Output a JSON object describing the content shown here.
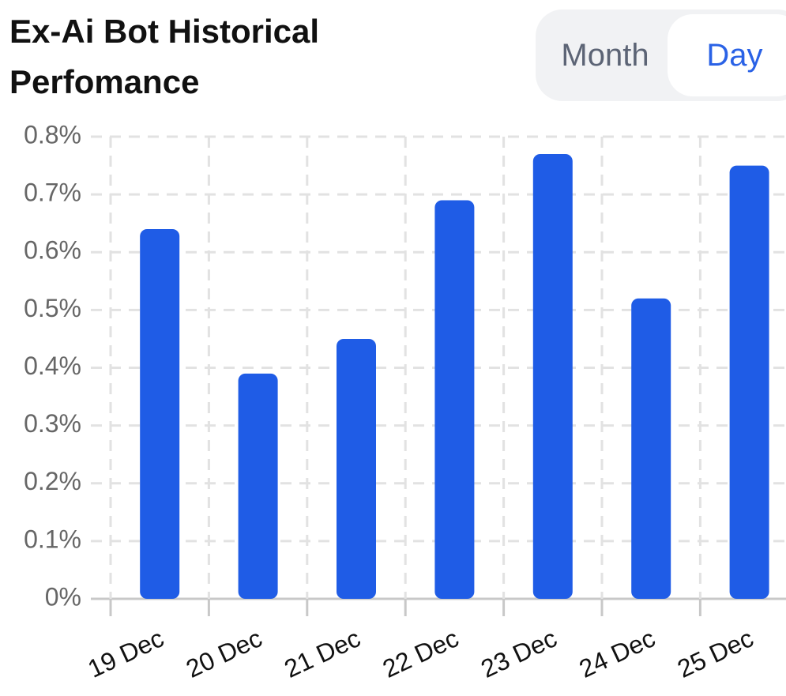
{
  "chart_data": {
    "type": "bar",
    "title": "Ex-Ai Bot Historical Perfomance",
    "toggle": [
      "Month",
      "Day"
    ],
    "categories": [
      "19 Dec",
      "20 Dec",
      "21 Dec",
      "22 Dec",
      "23 Dec",
      "24 Dec",
      "25 Dec"
    ],
    "values": [
      0.64,
      0.39,
      0.45,
      0.69,
      0.77,
      0.52,
      0.75
    ],
    "color": "#1f5ce6",
    "ylim": [
      0,
      0.8
    ],
    "yticks": [
      {
        "value": 0,
        "label": "0%"
      },
      {
        "value": 0.1,
        "label": "0.1%"
      },
      {
        "value": 0.2,
        "label": "0.2%"
      },
      {
        "value": 0.3,
        "label": "0.3%"
      },
      {
        "value": 0.4,
        "label": "0.4%"
      },
      {
        "value": 0.5,
        "label": "0.5%"
      },
      {
        "value": 0.6,
        "label": "0.6%"
      },
      {
        "value": 0.7,
        "label": "0.7%"
      },
      {
        "value": 0.8,
        "label": "0.8%"
      }
    ],
    "grid": true
  }
}
